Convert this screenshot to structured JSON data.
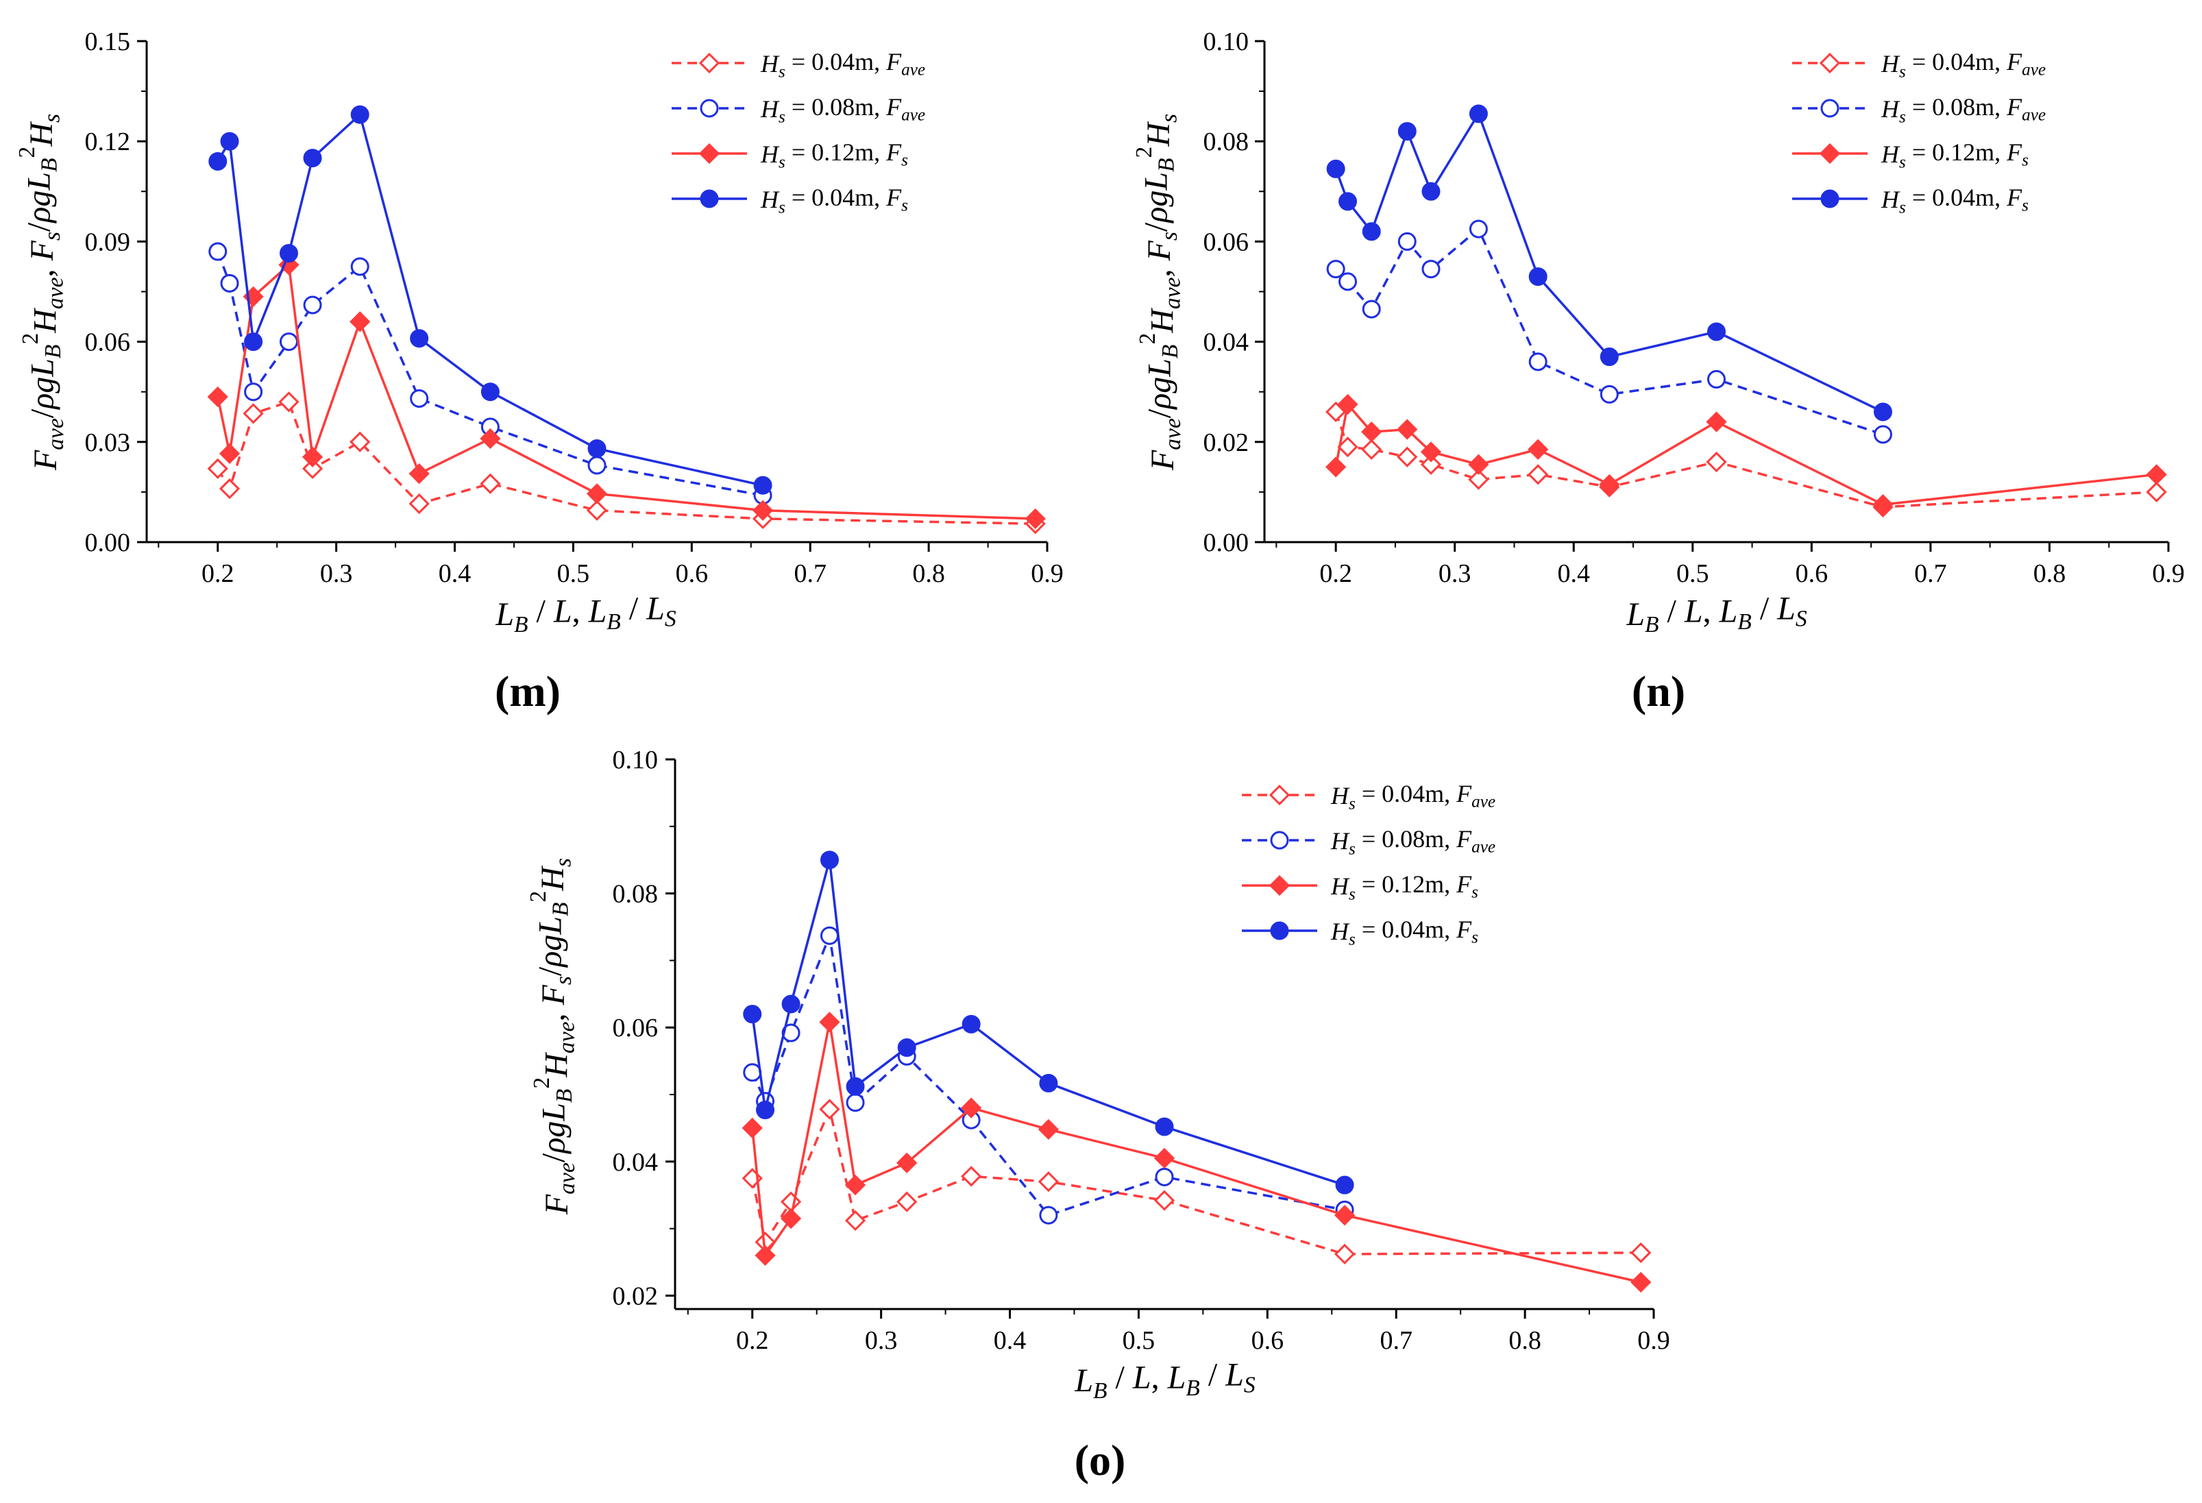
{
  "chart_data": [
    {
      "type": "line",
      "panel_label": "m",
      "xlabel": "L_B / L, L_B / L_S",
      "ylabel": "F_ave/ρgL_B²H_ave, F_s/ρgL_B²H_s",
      "xlim": [
        0.14,
        0.9
      ],
      "ylim": [
        0.0,
        0.15
      ],
      "xticks": [
        0.2,
        0.3,
        0.4,
        0.5,
        0.6,
        0.7,
        0.8,
        0.9
      ],
      "yticks": [
        "0.00",
        "0.03",
        "0.06",
        "0.09",
        "0.12",
        "0.15"
      ],
      "legend_position": "top-right",
      "grid": false,
      "series": [
        {
          "name": "H_s = 0.04m, F_ave",
          "color": "#ff3b3b",
          "dashed": true,
          "marker": "diamond-open",
          "x": [
            0.2,
            0.21,
            0.23,
            0.26,
            0.28,
            0.32,
            0.37,
            0.43,
            0.52,
            0.66,
            0.89
          ],
          "y": [
            0.022,
            0.016,
            0.0385,
            0.042,
            0.022,
            0.03,
            0.0115,
            0.0175,
            0.0095,
            0.007,
            0.0055
          ]
        },
        {
          "name": "H_s = 0.08m, F_ave",
          "color": "#1f2fe0",
          "dashed": true,
          "marker": "circle-open",
          "x": [
            0.2,
            0.21,
            0.23,
            0.26,
            0.28,
            0.32,
            0.37,
            0.43,
            0.52,
            0.66
          ],
          "y": [
            0.087,
            0.0775,
            0.045,
            0.06,
            0.071,
            0.0825,
            0.043,
            0.0345,
            0.023,
            0.014
          ]
        },
        {
          "name": "H_s = 0.12m, F_s",
          "color": "#ff3b3b",
          "dashed": false,
          "marker": "diamond-filled",
          "x": [
            0.2,
            0.21,
            0.23,
            0.26,
            0.28,
            0.32,
            0.37,
            0.43,
            0.52,
            0.66,
            0.89
          ],
          "y": [
            0.0435,
            0.0265,
            0.0735,
            0.083,
            0.0255,
            0.066,
            0.0205,
            0.031,
            0.0145,
            0.0095,
            0.007
          ]
        },
        {
          "name": "H_s = 0.04m, F_s",
          "color": "#1f2fe0",
          "dashed": false,
          "marker": "circle-filled",
          "x": [
            0.2,
            0.21,
            0.23,
            0.26,
            0.28,
            0.32,
            0.37,
            0.43,
            0.52,
            0.66
          ],
          "y": [
            0.114,
            0.12,
            0.06,
            0.0865,
            0.115,
            0.128,
            0.061,
            0.045,
            0.028,
            0.017
          ]
        }
      ]
    },
    {
      "type": "line",
      "panel_label": "n",
      "xlabel": "L_B / L, L_B / L_S",
      "ylabel": "F_ave/ρgL_B²H_ave, F_s/ρgL_B²H_s",
      "xlim": [
        0.14,
        0.9
      ],
      "ylim": [
        0.0,
        0.1
      ],
      "xticks": [
        0.2,
        0.3,
        0.4,
        0.5,
        0.6,
        0.7,
        0.8,
        0.9
      ],
      "yticks": [
        "0.00",
        "0.02",
        "0.04",
        "0.06",
        "0.08",
        "0.10"
      ],
      "legend_position": "top-right",
      "grid": false,
      "series": [
        {
          "name": "H_s = 0.04m, F_ave",
          "color": "#ff3b3b",
          "dashed": true,
          "marker": "diamond-open",
          "x": [
            0.2,
            0.21,
            0.23,
            0.26,
            0.28,
            0.32,
            0.37,
            0.43,
            0.52,
            0.66,
            0.89
          ],
          "y": [
            0.026,
            0.019,
            0.0185,
            0.017,
            0.0155,
            0.0125,
            0.0135,
            0.011,
            0.016,
            0.007,
            0.01
          ]
        },
        {
          "name": "H_s = 0.08m, F_ave",
          "color": "#1f2fe0",
          "dashed": true,
          "marker": "circle-open",
          "x": [
            0.2,
            0.21,
            0.23,
            0.26,
            0.28,
            0.32,
            0.37,
            0.43,
            0.52,
            0.66
          ],
          "y": [
            0.0545,
            0.052,
            0.0465,
            0.06,
            0.0545,
            0.0625,
            0.036,
            0.0295,
            0.0325,
            0.0215
          ]
        },
        {
          "name": "H_s = 0.12m, F_s",
          "color": "#ff3b3b",
          "dashed": false,
          "marker": "diamond-filled",
          "x": [
            0.2,
            0.21,
            0.23,
            0.26,
            0.28,
            0.32,
            0.37,
            0.43,
            0.52,
            0.66,
            0.89
          ],
          "y": [
            0.015,
            0.0275,
            0.022,
            0.0225,
            0.018,
            0.0155,
            0.0185,
            0.0115,
            0.024,
            0.0075,
            0.0135
          ]
        },
        {
          "name": "H_s = 0.04m, F_s",
          "color": "#1f2fe0",
          "dashed": false,
          "marker": "circle-filled",
          "x": [
            0.2,
            0.21,
            0.23,
            0.26,
            0.28,
            0.32,
            0.37,
            0.43,
            0.52,
            0.66
          ],
          "y": [
            0.0745,
            0.068,
            0.062,
            0.082,
            0.07,
            0.0855,
            0.053,
            0.037,
            0.042,
            0.026
          ]
        }
      ]
    },
    {
      "type": "line",
      "panel_label": "o",
      "xlabel": "L_B / L, L_B / L_S",
      "ylabel": "F_ave/ρgL_B²H_ave, F_s/ρgL_B²H_s",
      "xlim": [
        0.14,
        0.9
      ],
      "ylim": [
        0.018,
        0.1
      ],
      "xticks": [
        0.2,
        0.3,
        0.4,
        0.5,
        0.6,
        0.7,
        0.8,
        0.9
      ],
      "yticks": [
        "0.02",
        "0.04",
        "0.06",
        "0.08",
        "0.10"
      ],
      "ytick_values": [
        0.02,
        0.04,
        0.06,
        0.08,
        0.1
      ],
      "legend_position": "top-right",
      "grid": false,
      "series": [
        {
          "name": "H_s = 0.04m, F_ave",
          "color": "#ff3b3b",
          "dashed": true,
          "marker": "diamond-open",
          "x": [
            0.2,
            0.21,
            0.23,
            0.26,
            0.28,
            0.32,
            0.37,
            0.43,
            0.52,
            0.66,
            0.89
          ],
          "y": [
            0.0375,
            0.028,
            0.034,
            0.0478,
            0.0312,
            0.034,
            0.0378,
            0.037,
            0.0342,
            0.0262,
            0.0264
          ]
        },
        {
          "name": "H_s = 0.08m, F_ave",
          "color": "#1f2fe0",
          "dashed": true,
          "marker": "circle-open",
          "x": [
            0.2,
            0.21,
            0.23,
            0.26,
            0.28,
            0.32,
            0.37,
            0.43,
            0.52,
            0.66
          ],
          "y": [
            0.0533,
            0.049,
            0.0592,
            0.0737,
            0.0488,
            0.0557,
            0.0462,
            0.032,
            0.0377,
            0.0328
          ]
        },
        {
          "name": "H_s = 0.12m, F_s",
          "color": "#ff3b3b",
          "dashed": false,
          "marker": "diamond-filled",
          "x": [
            0.2,
            0.21,
            0.23,
            0.26,
            0.28,
            0.32,
            0.37,
            0.43,
            0.52,
            0.66,
            0.89
          ],
          "y": [
            0.045,
            0.026,
            0.0315,
            0.0608,
            0.0365,
            0.0398,
            0.048,
            0.0448,
            0.0405,
            0.032,
            0.022
          ]
        },
        {
          "name": "H_s = 0.04m, F_s",
          "color": "#1f2fe0",
          "dashed": false,
          "marker": "circle-filled",
          "x": [
            0.2,
            0.21,
            0.23,
            0.26,
            0.28,
            0.32,
            0.37,
            0.43,
            0.52,
            0.66
          ],
          "y": [
            0.062,
            0.0477,
            0.0635,
            0.085,
            0.0512,
            0.057,
            0.0605,
            0.0517,
            0.0452,
            0.0365
          ]
        }
      ]
    }
  ]
}
